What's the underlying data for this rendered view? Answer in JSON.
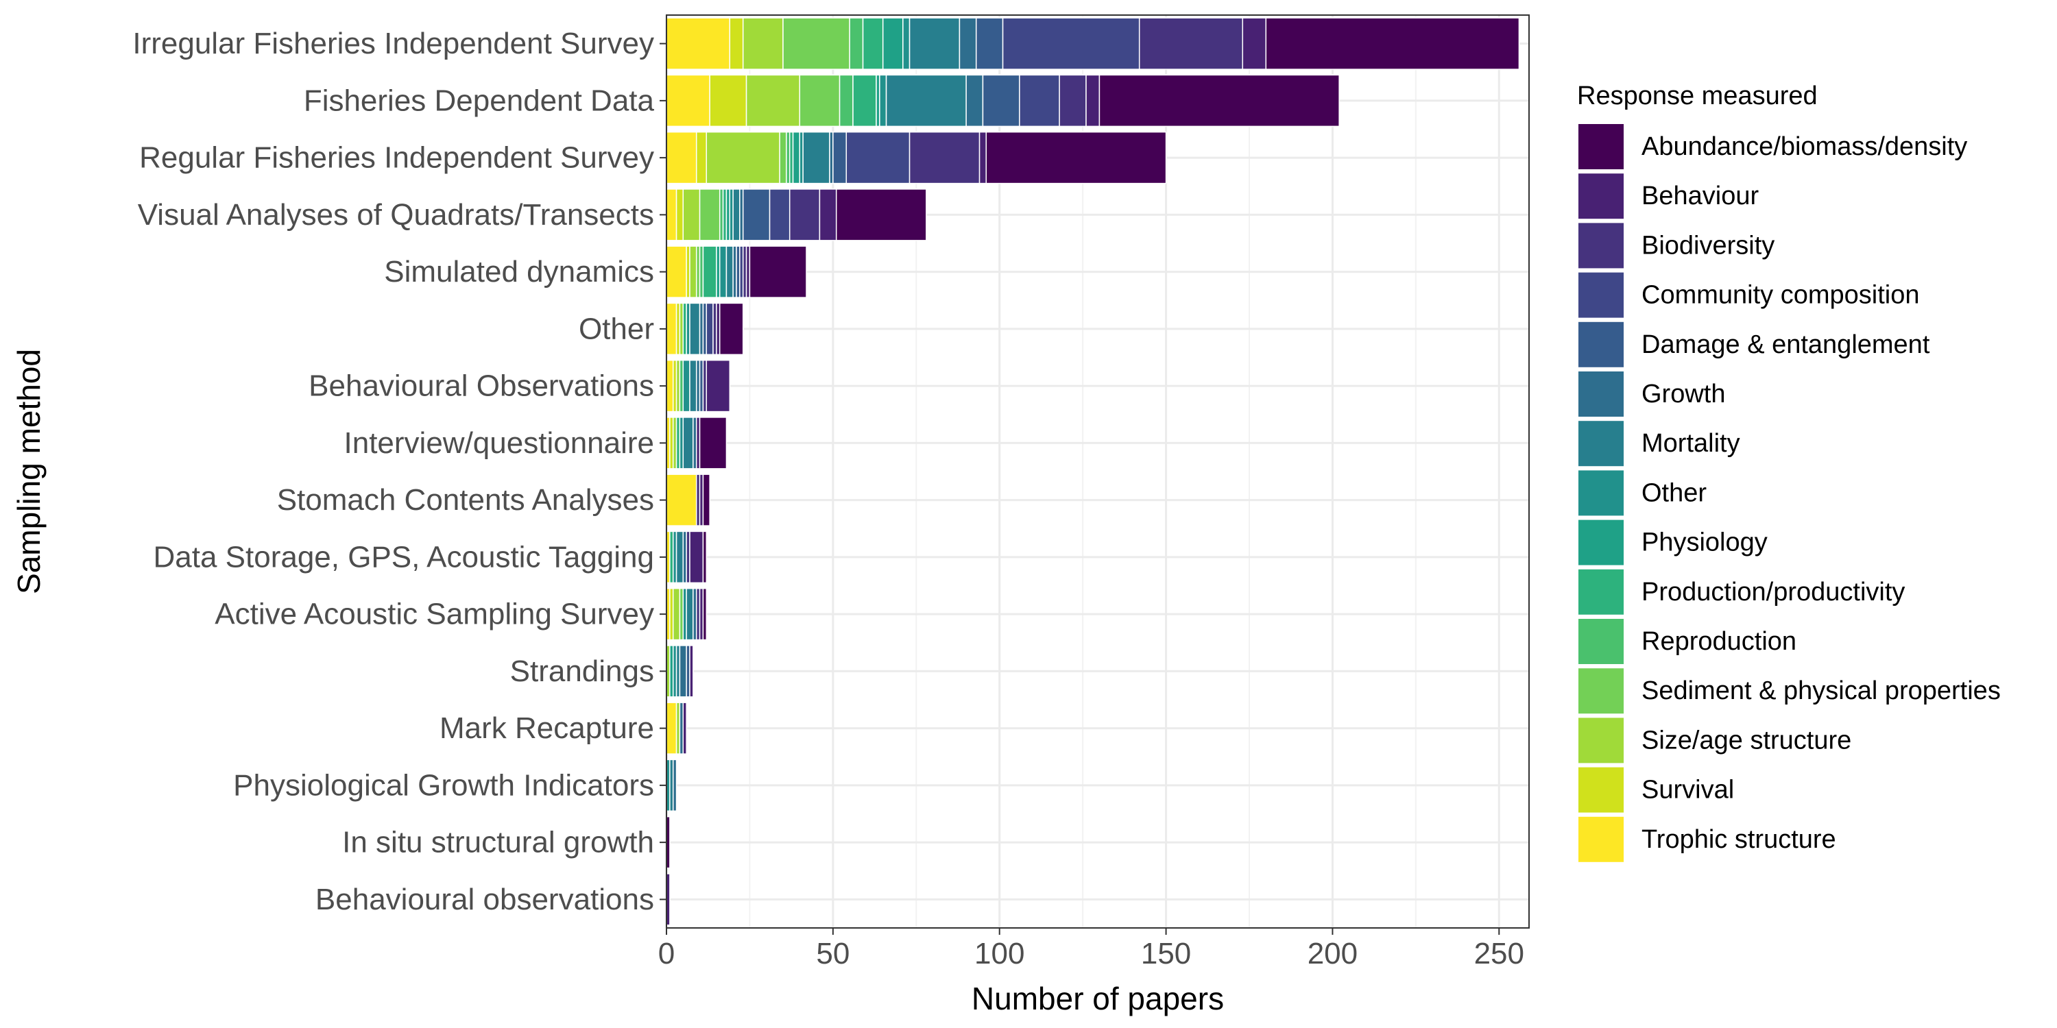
{
  "chart_data": {
    "type": "bar",
    "orientation": "horizontal",
    "stacked": true,
    "title": "",
    "xlabel": "Number of papers",
    "ylabel": "Sampling method",
    "xlim": [
      0,
      259
    ],
    "xticks": [
      0,
      50,
      100,
      150,
      200,
      250
    ],
    "grid": true,
    "legend_position": "right",
    "legend_title": "Response measured",
    "categories": [
      "Irregular Fisheries Independent Survey",
      "Fisheries Dependent Data",
      "Regular Fisheries Independent Survey",
      "Visual Analyses of Quadrats/Transects",
      "Simulated dynamics",
      "Other",
      "Behavioural Observations",
      "Interview/questionnaire",
      "Stomach Contents Analyses",
      "Data Storage, GPS, Acoustic Tagging",
      "Active Acoustic Sampling Survey",
      "Strandings",
      "Mark Recapture",
      "Physiological Growth Indicators",
      "In situ structural growth",
      "Behavioural observations"
    ],
    "series": [
      {
        "name": "Trophic structure",
        "color": "#FDE725",
        "values": [
          19,
          13,
          9,
          3,
          6,
          3,
          2,
          1,
          9,
          1,
          1,
          0,
          3,
          0,
          0,
          0
        ]
      },
      {
        "name": "Survival",
        "color": "#D0E11C",
        "values": [
          4,
          11,
          3,
          2,
          1,
          1,
          1,
          1,
          0,
          0,
          1,
          0,
          0,
          0,
          0,
          0
        ]
      },
      {
        "name": "Size/age structure",
        "color": "#A0DA39",
        "values": [
          12,
          16,
          22,
          5,
          2,
          1,
          1,
          1,
          0,
          0,
          2,
          1,
          1,
          0,
          0,
          0
        ]
      },
      {
        "name": "Sediment & physical properties",
        "color": "#73D056",
        "values": [
          20,
          12,
          2,
          6,
          1,
          0,
          0,
          0,
          0,
          0,
          1,
          0,
          0,
          0,
          0,
          0
        ]
      },
      {
        "name": "Reproduction",
        "color": "#4AC16D",
        "values": [
          4,
          4,
          1,
          1,
          1,
          0,
          1,
          0,
          0,
          0,
          0,
          0,
          0,
          0,
          0,
          0
        ]
      },
      {
        "name": "Production/productivity",
        "color": "#2DB27D",
        "values": [
          6,
          7,
          1,
          1,
          4,
          1,
          0,
          1,
          0,
          1,
          0,
          0,
          0,
          0,
          0,
          0
        ]
      },
      {
        "name": "Physiology",
        "color": "#1FA187",
        "values": [
          6,
          1,
          2,
          1,
          1,
          0,
          0,
          0,
          0,
          0,
          0,
          1,
          0,
          0,
          0,
          0
        ]
      },
      {
        "name": "Other",
        "color": "#21918C",
        "values": [
          2,
          2,
          1,
          1,
          2,
          1,
          2,
          1,
          0,
          1,
          1,
          1,
          0,
          1,
          0,
          0
        ]
      },
      {
        "name": "Mortality",
        "color": "#277F8E",
        "values": [
          15,
          24,
          8,
          2,
          2,
          3,
          2,
          3,
          0,
          2,
          2,
          1,
          0,
          1,
          0,
          0
        ]
      },
      {
        "name": "Growth",
        "color": "#2E6E8E",
        "values": [
          5,
          5,
          1,
          1,
          1,
          1,
          1,
          1,
          0,
          1,
          1,
          2,
          1,
          1,
          0,
          0
        ]
      },
      {
        "name": "Damage & entanglement",
        "color": "#365C8D",
        "values": [
          8,
          11,
          4,
          8,
          1,
          1,
          1,
          0,
          0,
          0,
          0,
          1,
          0,
          0,
          0,
          0
        ]
      },
      {
        "name": "Community composition",
        "color": "#3F4788",
        "values": [
          41,
          12,
          19,
          6,
          1,
          2,
          0,
          0,
          0,
          0,
          0,
          0,
          0,
          0,
          0,
          0
        ]
      },
      {
        "name": "Biodiversity",
        "color": "#46337E",
        "values": [
          31,
          8,
          21,
          9,
          1,
          1,
          1,
          0,
          1,
          1,
          1,
          0,
          0,
          0,
          0,
          0
        ]
      },
      {
        "name": "Behaviour",
        "color": "#482173",
        "values": [
          7,
          4,
          2,
          5,
          1,
          1,
          7,
          1,
          1,
          4,
          1,
          1,
          1,
          0,
          0,
          1
        ]
      },
      {
        "name": "Abundance/biomass/density",
        "color": "#440154",
        "values": [
          76,
          72,
          54,
          27,
          17,
          7,
          0,
          8,
          2,
          1,
          1,
          0,
          0,
          0,
          1,
          0
        ]
      }
    ]
  }
}
